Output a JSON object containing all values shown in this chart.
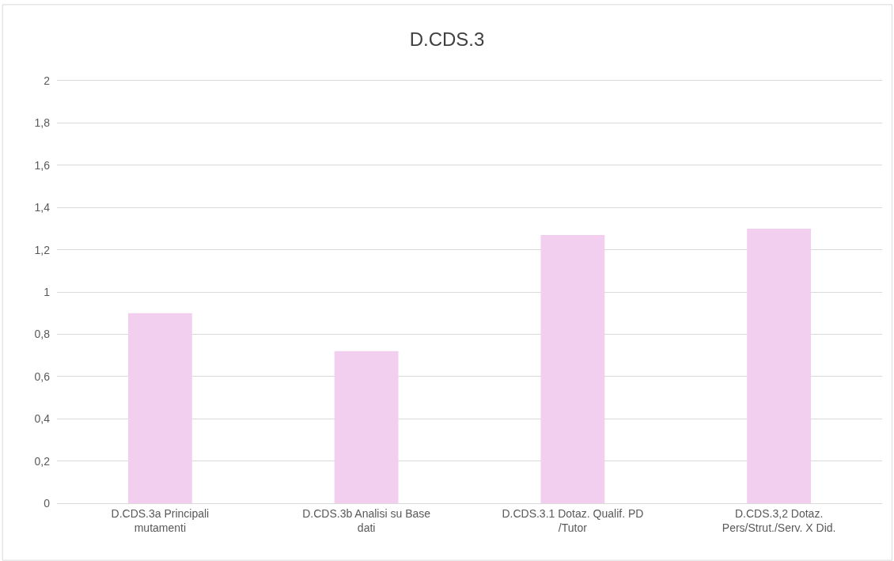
{
  "chart_data": {
    "type": "bar",
    "title": "D.CDS.3",
    "categories": [
      "D.CDS.3a Principali mutamenti",
      "D.CDS.3b Analisi su Base dati",
      "D.CDS.3.1 Dotaz. Qualif. PD /Tutor",
      "D.CDS.3,2 Dotaz. Pers/Strut./Serv. X Did."
    ],
    "values": [
      0.9,
      0.72,
      1.27,
      1.3
    ],
    "color": "#f2cfee",
    "ylim": [
      0,
      2
    ],
    "yticks": [
      0,
      {
        "value": 0.2,
        "label": "0,2"
      },
      {
        "value": 0.4,
        "label": "0,4"
      },
      {
        "value": 0.6,
        "label": "0,6"
      },
      {
        "value": 0.8,
        "label": "0,8"
      },
      1,
      {
        "value": 1.2,
        "label": "1,2"
      },
      {
        "value": 1.4,
        "label": "1,4"
      },
      {
        "value": 1.6,
        "label": "1,6"
      },
      {
        "value": 1.8,
        "label": "1,8"
      },
      2
    ],
    "grid": "y"
  }
}
